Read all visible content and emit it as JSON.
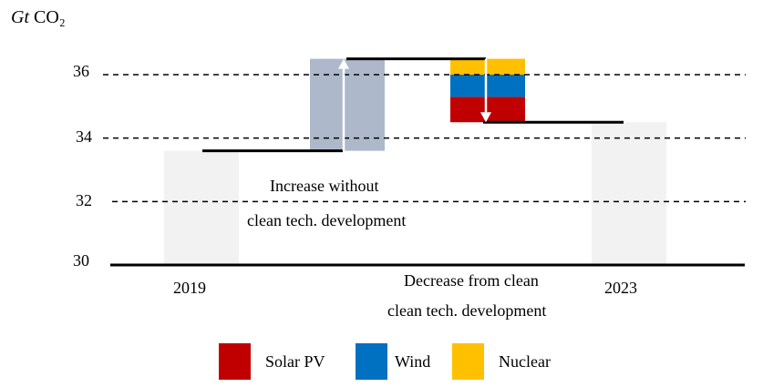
{
  "chart_data": {
    "type": "waterfall",
    "unit_prefix": "Gt",
    "unit_suffix": "CO₂",
    "ylim": [
      30,
      37
    ],
    "yticks": [
      30,
      32,
      34,
      36
    ],
    "grid": "dashed horizontal",
    "categories": [
      "2019",
      "2023"
    ],
    "bars": [
      {
        "label": "2019",
        "start": 30,
        "end": 33.6,
        "color": "#f2f2f2"
      },
      {
        "label": "",
        "start": 33.6,
        "end": 36.5,
        "color": "#adb9ca"
      },
      {
        "label": "",
        "start": 36.5,
        "end": 34.5,
        "color": "stacked",
        "segments": [
          {
            "name": "Solar PV",
            "from": 34.5,
            "to": 35.3,
            "color": "#c00000"
          },
          {
            "name": "Wind",
            "from": 35.3,
            "to": 36.0,
            "color": "#0070c0"
          },
          {
            "name": "Nuclear",
            "from": 36.0,
            "to": 36.5,
            "color": "#ffc000"
          }
        ]
      },
      {
        "label": "2023",
        "start": 30,
        "end": 34.5,
        "color": "#f2f2f2"
      }
    ],
    "annotations": {
      "increase_line1": "Increase without",
      "increase_line2": "clean tech. development",
      "decrease_line1": "Decrease from clean",
      "decrease_line2": "clean tech. development"
    },
    "legend": [
      {
        "name": "Solar PV",
        "color": "#c00000"
      },
      {
        "name": "Wind",
        "color": "#0070c0"
      },
      {
        "name": "Nuclear",
        "color": "#ffc000"
      }
    ],
    "legend_position": "bottom"
  }
}
